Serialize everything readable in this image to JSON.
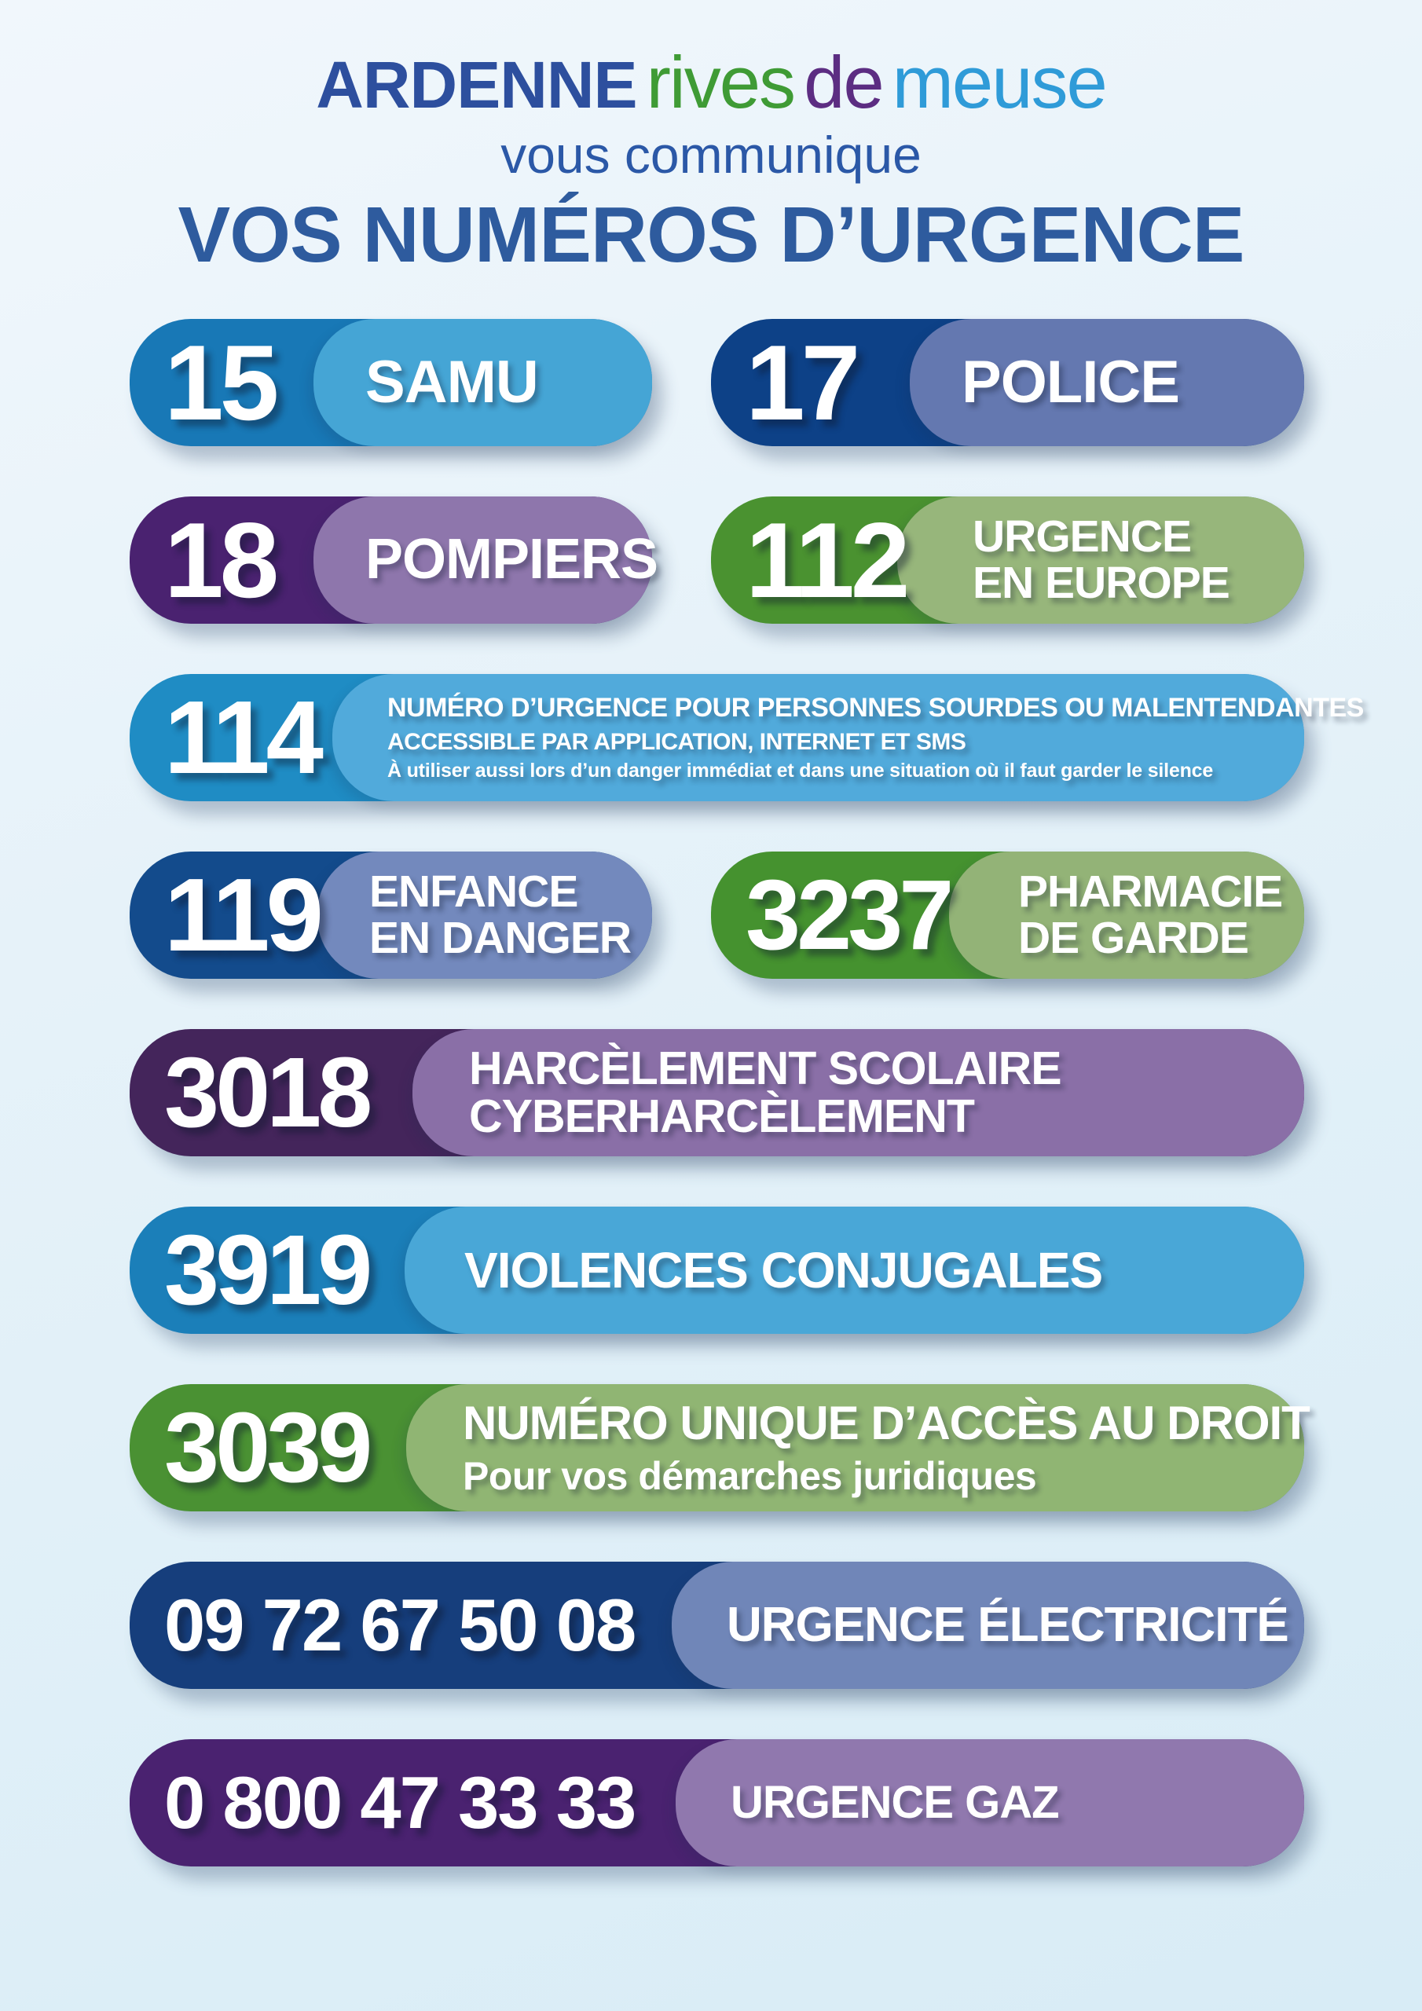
{
  "header": {
    "logo": {
      "ardenne": "ARDENNE",
      "rives": "rives",
      "de": "de",
      "meuse": "meuse"
    },
    "logo_colors": {
      "ardenne": "#2d4f9e",
      "rives": "#3f9b35",
      "de": "#5c2d82",
      "meuse": "#2f9bd8"
    },
    "subtitle": "vous communique",
    "title": "VOS NUMÉROS D’URGENCE",
    "title_color": "#2e5b9e"
  },
  "background": {
    "top": "#f1f7fc",
    "bottom": "#d8ecf6"
  },
  "rows": [
    {
      "type": "double",
      "items": [
        {
          "number": "15",
          "line1": "SAMU",
          "num_bg": "#1878b6",
          "label_bg": "#45a5d5"
        },
        {
          "number": "17",
          "line1": "POLICE",
          "num_bg": "#0d4187",
          "label_bg": "#6478b0"
        }
      ]
    },
    {
      "type": "double",
      "items": [
        {
          "number": "18",
          "line1": "POMPIERS",
          "num_bg": "#4a2270",
          "label_bg": "#8e76ac"
        },
        {
          "number": "112",
          "line1": "URGENCE",
          "line2": "EN EUROPE",
          "num_bg": "#4a9230",
          "label_bg": "#97b67b"
        }
      ]
    },
    {
      "type": "single",
      "items": [
        {
          "number": "114",
          "line1": "NUMÉRO D’URGENCE POUR PERSONNES SOURDES OU MALENTENDANTES",
          "line2": "ACCESSIBLE PAR APPLICATION, INTERNET ET SMS",
          "line3": "À utiliser aussi lors d’un danger immédiat et dans une situation où il faut garder le silence",
          "num_bg": "#1f8cc4",
          "label_bg": "#51aadb"
        }
      ]
    },
    {
      "type": "double",
      "items": [
        {
          "number": "119",
          "line1": "ENFANCE",
          "line2": "EN DANGER",
          "num_bg": "#134b8c",
          "label_bg": "#7389bd"
        },
        {
          "number": "3237",
          "line1": "PHARMACIE",
          "line2": "DE GARDE",
          "num_bg": "#45922f",
          "label_bg": "#93b377"
        }
      ]
    },
    {
      "type": "single",
      "items": [
        {
          "number": "3018",
          "line1": "HARCÈLEMENT SCOLAIRE",
          "line2": "CYBERHARCÈLEMENT",
          "num_bg": "#44255b",
          "label_bg": "#8a6fa7"
        }
      ]
    },
    {
      "type": "single",
      "items": [
        {
          "number": "3919",
          "line1": "VIOLENCES CONJUGALES",
          "num_bg": "#1b7fb9",
          "label_bg": "#49a7d7"
        }
      ]
    },
    {
      "type": "single",
      "items": [
        {
          "number": "3039",
          "line1": "NUMÉRO UNIQUE D’ACCÈS AU DROIT",
          "line2": "Pour vos démarches juridiques",
          "num_bg": "#4a9133",
          "label_bg": "#90b573"
        }
      ]
    },
    {
      "type": "single",
      "items": [
        {
          "number": "09 72 67 50 08",
          "line1": "URGENCE ÉLECTRICITÉ",
          "num_bg": "#163e7c",
          "label_bg": "#7086b8"
        }
      ]
    },
    {
      "type": "single",
      "items": [
        {
          "number": "0 800 47 33 33",
          "line1": "URGENCE GAZ",
          "num_bg": "#4a2270",
          "label_bg": "#9078ae"
        }
      ]
    }
  ]
}
